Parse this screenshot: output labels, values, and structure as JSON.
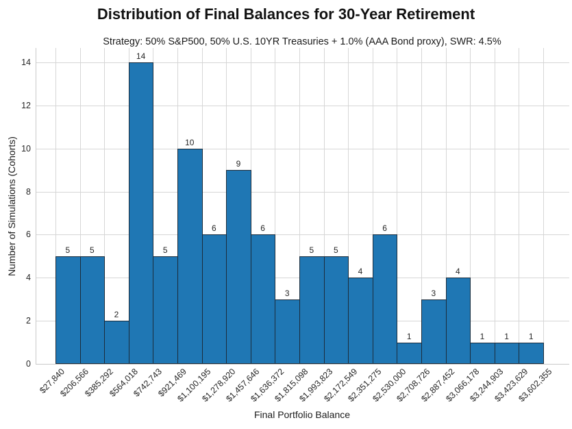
{
  "chart_data": {
    "type": "bar",
    "subtype": "histogram",
    "title": "Distribution of Final Balances for 30-Year Retirement",
    "subtitle": "Strategy: 50% S&P500, 50% U.S. 10YR Treasuries + 1.0% (AAA Bond proxy), SWR: 4.5%",
    "xlabel": "Final Portfolio Balance",
    "ylabel": "Number of Simulations (Cohorts)",
    "bin_edge_labels": [
      "$27,840",
      "$206,566",
      "$385,292",
      "$564,018",
      "$742,743",
      "$921,469",
      "$1,100,195",
      "$1,278,920",
      "$1,457,646",
      "$1,636,372",
      "$1,815,098",
      "$1,993,823",
      "$2,172,549",
      "$2,351,275",
      "$2,530,000",
      "$2,708,726",
      "$2,887,452",
      "$3,066,178",
      "$3,244,903",
      "$3,423,629",
      "$3,602,355"
    ],
    "values": [
      5,
      5,
      2,
      14,
      5,
      10,
      6,
      9,
      6,
      3,
      5,
      5,
      4,
      6,
      1,
      3,
      4,
      1,
      1,
      1
    ],
    "bar_value_labels": [
      "5",
      "5",
      "2",
      "14",
      "5",
      "10",
      "6",
      "9",
      "6",
      "3",
      "5",
      "5",
      "4",
      "6",
      "1",
      "3",
      "4",
      "1",
      "1",
      "1"
    ],
    "yticks": [
      0,
      2,
      4,
      6,
      8,
      10,
      12,
      14
    ],
    "ylim": [
      0,
      14.67
    ],
    "grid": true,
    "legend": "none",
    "bar_color": "#1f77b4",
    "bar_edge_color": "#1b2b3a",
    "grid_color": "#d6d6d6",
    "text_color": "#262626"
  }
}
